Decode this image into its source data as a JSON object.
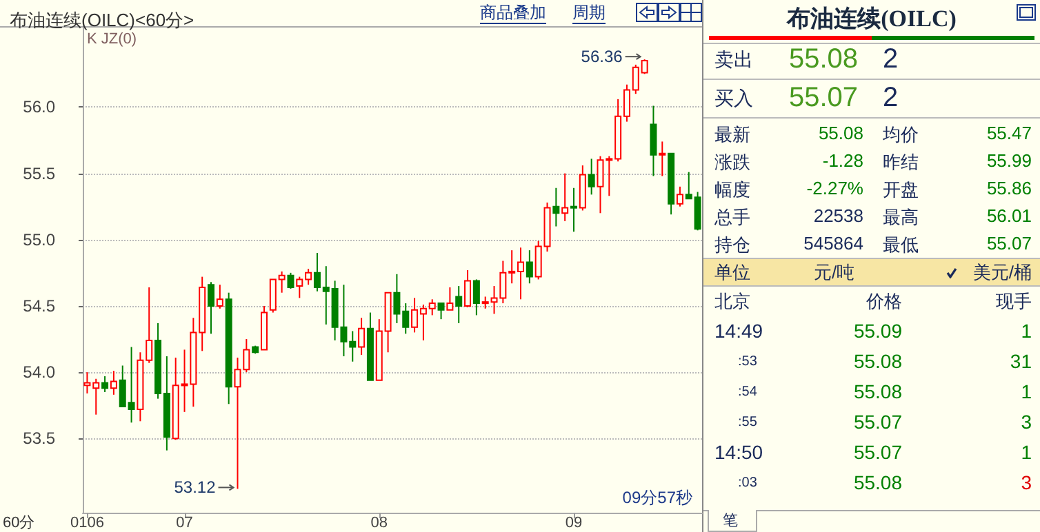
{
  "chart_data": [
    {
      "type": "candlestick",
      "title": "布油连续(OILC)<60分>",
      "categories": [
        "0106",
        null,
        null,
        null,
        null,
        null,
        null,
        null,
        null,
        null,
        null,
        "07",
        null,
        null,
        null,
        null,
        null,
        null,
        null,
        null,
        null,
        null,
        null,
        null,
        null,
        null,
        null,
        null,
        null,
        null,
        null,
        null,
        null,
        "08",
        null,
        null,
        null,
        null,
        null,
        null,
        null,
        null,
        null,
        null,
        null,
        null,
        null,
        null,
        null,
        null,
        null,
        null,
        null,
        null,
        null,
        "09",
        null,
        null,
        null,
        null,
        null,
        null,
        null,
        null,
        null,
        null,
        null,
        null,
        null,
        null
      ],
      "ohlc": [
        [
          53.9,
          54.0,
          53.84,
          53.92
        ],
        [
          53.88,
          53.95,
          53.68,
          53.92
        ],
        [
          53.92,
          53.97,
          53.85,
          53.88
        ],
        [
          53.88,
          54.01,
          53.83,
          53.93
        ],
        [
          53.94,
          54.05,
          53.74,
          53.74
        ],
        [
          53.77,
          54.19,
          53.62,
          53.72
        ],
        [
          53.72,
          54.15,
          53.63,
          54.09
        ],
        [
          54.09,
          54.64,
          54.07,
          54.24
        ],
        [
          54.24,
          54.37,
          53.8,
          53.84
        ],
        [
          53.84,
          54.12,
          53.41,
          53.51
        ],
        [
          53.5,
          54.11,
          53.49,
          53.9
        ],
        [
          53.9,
          54.17,
          53.7,
          53.91
        ],
        [
          53.91,
          54.41,
          53.74,
          54.3
        ],
        [
          54.3,
          54.72,
          54.16,
          54.64
        ],
        [
          54.66,
          54.68,
          54.29,
          54.5
        ],
        [
          54.5,
          54.66,
          54.48,
          54.55
        ],
        [
          54.55,
          54.6,
          53.76,
          53.89
        ],
        [
          53.89,
          54.11,
          53.12,
          54.02
        ],
        [
          54.02,
          54.25,
          54.0,
          54.17
        ],
        [
          54.19,
          54.2,
          54.14,
          54.15
        ],
        [
          54.17,
          54.5,
          54.17,
          54.45
        ],
        [
          54.47,
          54.7,
          54.45,
          54.7
        ],
        [
          54.7,
          54.76,
          54.6,
          54.73
        ],
        [
          54.73,
          54.75,
          54.63,
          54.64
        ],
        [
          54.65,
          54.72,
          54.56,
          54.7
        ],
        [
          54.7,
          54.78,
          54.66,
          54.75
        ],
        [
          54.75,
          54.9,
          54.61,
          54.64
        ],
        [
          54.64,
          54.8,
          54.36,
          54.61
        ],
        [
          54.63,
          54.69,
          54.24,
          54.34
        ],
        [
          54.34,
          54.66,
          54.12,
          54.23
        ],
        [
          54.23,
          54.31,
          54.08,
          54.19
        ],
        [
          54.19,
          54.41,
          54.13,
          54.33
        ],
        [
          54.33,
          54.45,
          53.94,
          53.94
        ],
        [
          53.94,
          54.4,
          53.94,
          54.31
        ],
        [
          54.31,
          54.6,
          54.15,
          54.6
        ],
        [
          54.6,
          54.74,
          54.37,
          54.44
        ],
        [
          54.46,
          54.52,
          54.29,
          54.34
        ],
        [
          54.34,
          54.56,
          54.3,
          54.47
        ],
        [
          54.44,
          54.51,
          54.24,
          54.48
        ],
        [
          54.48,
          54.55,
          54.43,
          54.52
        ],
        [
          54.52,
          54.52,
          54.4,
          54.47
        ],
        [
          54.47,
          54.64,
          54.47,
          54.52
        ],
        [
          54.57,
          54.65,
          54.37,
          54.5
        ],
        [
          54.5,
          54.77,
          54.49,
          54.69
        ],
        [
          54.69,
          54.7,
          54.43,
          54.52
        ],
        [
          54.53,
          54.57,
          54.48,
          54.53
        ],
        [
          54.53,
          54.65,
          54.44,
          54.56
        ],
        [
          54.56,
          54.84,
          54.52,
          54.75
        ],
        [
          54.75,
          54.92,
          54.67,
          54.76
        ],
        [
          54.76,
          54.94,
          54.55,
          54.83
        ],
        [
          54.83,
          54.92,
          54.67,
          54.72
        ],
        [
          54.72,
          54.99,
          54.7,
          54.95
        ],
        [
          54.95,
          55.28,
          54.91,
          55.24
        ],
        [
          55.25,
          55.39,
          55.1,
          55.2
        ],
        [
          55.2,
          55.5,
          55.14,
          55.24
        ],
        [
          55.25,
          55.39,
          55.06,
          55.24
        ],
        [
          55.24,
          55.56,
          55.22,
          55.49
        ],
        [
          55.49,
          55.61,
          55.34,
          55.4
        ],
        [
          55.4,
          55.63,
          55.2,
          55.6
        ],
        [
          55.6,
          55.63,
          55.33,
          55.61
        ],
        [
          55.61,
          56.06,
          55.59,
          55.93
        ],
        [
          55.93,
          56.17,
          55.89,
          56.13
        ],
        [
          56.13,
          56.32,
          56.1,
          56.3
        ],
        [
          56.26,
          56.36,
          56.25,
          56.35
        ],
        [
          55.87,
          56.01,
          55.48,
          55.64
        ],
        [
          55.65,
          55.74,
          55.48,
          55.65
        ],
        [
          55.65,
          55.65,
          55.19,
          55.27
        ],
        [
          55.27,
          55.4,
          55.25,
          55.34
        ],
        [
          55.34,
          55.51,
          55.31,
          55.31
        ],
        [
          55.32,
          55.36,
          55.07,
          55.08
        ]
      ],
      "ylim": [
        52.94,
        56.6
      ],
      "yticks": [
        {
          "value": 53.5,
          "label": "53.5"
        },
        {
          "value": 54,
          "label": "54.0"
        },
        {
          "value": 54.5,
          "label": "54.5"
        },
        {
          "value": 55,
          "label": "55.0"
        },
        {
          "value": 55.5,
          "label": "55.5"
        },
        {
          "value": 56,
          "label": "56.0"
        }
      ],
      "grid": "y",
      "annotations": [
        "K JZ(0)",
        "商品叠加",
        "周期",
        "09分57秒",
        "60分",
        "53.12",
        "56.36"
      ]
    },
    {
      "type": "other",
      "title": "布油连续(OILC)",
      "annotations": [
        "卖出",
        "55.08",
        "2",
        "买入",
        "55.07",
        "2",
        "最新",
        "55.08",
        "均价",
        "55.47",
        "涨跌",
        "-1.28",
        "昨结",
        "55.99",
        "幅度",
        "-2.27%",
        "开盘",
        "55.86",
        "总手",
        "22538",
        "最高",
        "56.01",
        "持仓",
        "545864",
        "最低",
        "55.07",
        "单位",
        "元/吨",
        "美元/桶",
        "北京",
        "价格",
        "现手",
        "14:49",
        "55.09",
        "1",
        ":53",
        "55.08",
        "31",
        ":54",
        "55.08",
        "1",
        ":55",
        "55.07",
        "3",
        "14:50",
        "55.07",
        "1",
        ":03",
        "55.08",
        "3",
        "笔"
      ]
    }
  ]
}
